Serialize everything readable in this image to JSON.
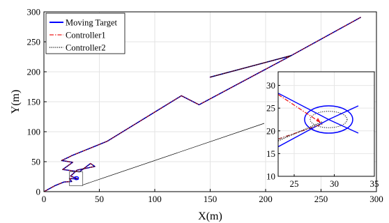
{
  "chart_data": {
    "type": "line",
    "title": "",
    "xlabel": "X(m)",
    "ylabel": "Y(m)",
    "xlim": [
      0,
      300
    ],
    "ylim": [
      0,
      300
    ],
    "xticks": [
      "0",
      "50",
      "100",
      "150",
      "200",
      "250",
      "300"
    ],
    "yticks": [
      "0",
      "50",
      "100",
      "150",
      "200",
      "250",
      "300"
    ],
    "grid": true,
    "legend_position": "top-left",
    "series": [
      {
        "name": "Moving Target",
        "color": "#0000ff",
        "style": "solid",
        "points": [
          [
            0,
            0
          ],
          [
            10,
            10
          ],
          [
            18,
            16
          ],
          [
            25,
            17
          ],
          [
            23,
            22
          ],
          [
            31,
            21
          ],
          [
            24,
            26
          ],
          [
            30,
            36
          ],
          [
            46,
            42
          ],
          [
            42,
            47
          ],
          [
            32,
            33
          ],
          [
            17,
            37
          ],
          [
            26,
            49
          ],
          [
            16,
            52
          ],
          [
            23,
            58
          ],
          [
            25,
            60
          ],
          [
            57,
            84
          ],
          [
            124,
            160
          ],
          [
            140,
            145
          ],
          [
            223,
            227
          ],
          [
            150,
            191
          ],
          [
            223,
            227
          ],
          [
            286,
            291
          ]
        ]
      },
      {
        "name": "Controller1",
        "color": "#ee1c1c",
        "style": "dashdot",
        "points": [
          [
            0,
            0
          ],
          [
            10,
            10
          ],
          [
            18,
            16
          ],
          [
            25,
            17
          ],
          [
            23,
            22
          ],
          [
            31,
            21
          ],
          [
            24,
            26
          ],
          [
            30,
            36
          ],
          [
            46,
            42
          ],
          [
            42,
            47
          ],
          [
            32,
            33
          ],
          [
            17,
            37
          ],
          [
            26,
            49
          ],
          [
            16,
            52
          ],
          [
            23,
            58
          ],
          [
            25,
            60
          ],
          [
            57,
            84
          ],
          [
            124,
            160
          ],
          [
            140,
            145
          ],
          [
            223,
            227
          ],
          [
            150,
            191
          ],
          [
            223,
            227
          ],
          [
            286,
            291
          ]
        ]
      },
      {
        "name": "Controller2",
        "color": "#000000",
        "style": "dotted",
        "points": [
          [
            0,
            0
          ],
          [
            10,
            10
          ],
          [
            18,
            16
          ],
          [
            25,
            17
          ],
          [
            23,
            22
          ],
          [
            31,
            21
          ],
          [
            24,
            26
          ],
          [
            30,
            36
          ],
          [
            46,
            42
          ],
          [
            42,
            47
          ],
          [
            32,
            33
          ],
          [
            17,
            37
          ],
          [
            26,
            49
          ],
          [
            16,
            52
          ],
          [
            23,
            58
          ],
          [
            25,
            60
          ],
          [
            57,
            84
          ],
          [
            124,
            160
          ],
          [
            140,
            145
          ],
          [
            223,
            227
          ],
          [
            150,
            191
          ],
          [
            223,
            227
          ],
          [
            286,
            291
          ]
        ]
      }
    ],
    "zoom_box": {
      "xlim": [
        23,
        35
      ],
      "ylim": [
        10,
        33
      ]
    },
    "inset": {
      "xlim": [
        23,
        35
      ],
      "ylim": [
        10,
        33
      ],
      "xticks": [
        "25",
        "30",
        "35"
      ],
      "yticks": [
        "10",
        "15",
        "20",
        "25",
        "30"
      ],
      "circle": {
        "cx": 29.3,
        "cy": 22.5,
        "r": 3
      },
      "dotted_ellipse": {
        "cx": 29.3,
        "cy": 22.5,
        "rx": 2.3,
        "ry": 1.8
      },
      "lines": [
        {
          "series": "Moving Target",
          "color": "#0000ff",
          "points": [
            [
              23,
              28.3
            ],
            [
              29.3,
              22.5
            ],
            [
              33,
              25.5
            ]
          ]
        },
        {
          "series": "Moving Target",
          "color": "#0000ff",
          "points": [
            [
              23,
              16.5
            ],
            [
              29.3,
              22.5
            ],
            [
              33,
              19.5
            ]
          ]
        },
        {
          "series": "Controller1",
          "color": "#ee1c1c",
          "points": [
            [
              23,
              28
            ],
            [
              28.3,
              21.8
            ]
          ]
        },
        {
          "series": "Controller2",
          "color": "#000000",
          "points": [
            [
              23,
              17.8
            ],
            [
              28.5,
              22
            ]
          ]
        },
        {
          "series": "Controller1",
          "color": "#8b1a1a",
          "points": [
            [
              23,
              18.2
            ],
            [
              28.5,
              21.5
            ]
          ]
        }
      ]
    }
  }
}
